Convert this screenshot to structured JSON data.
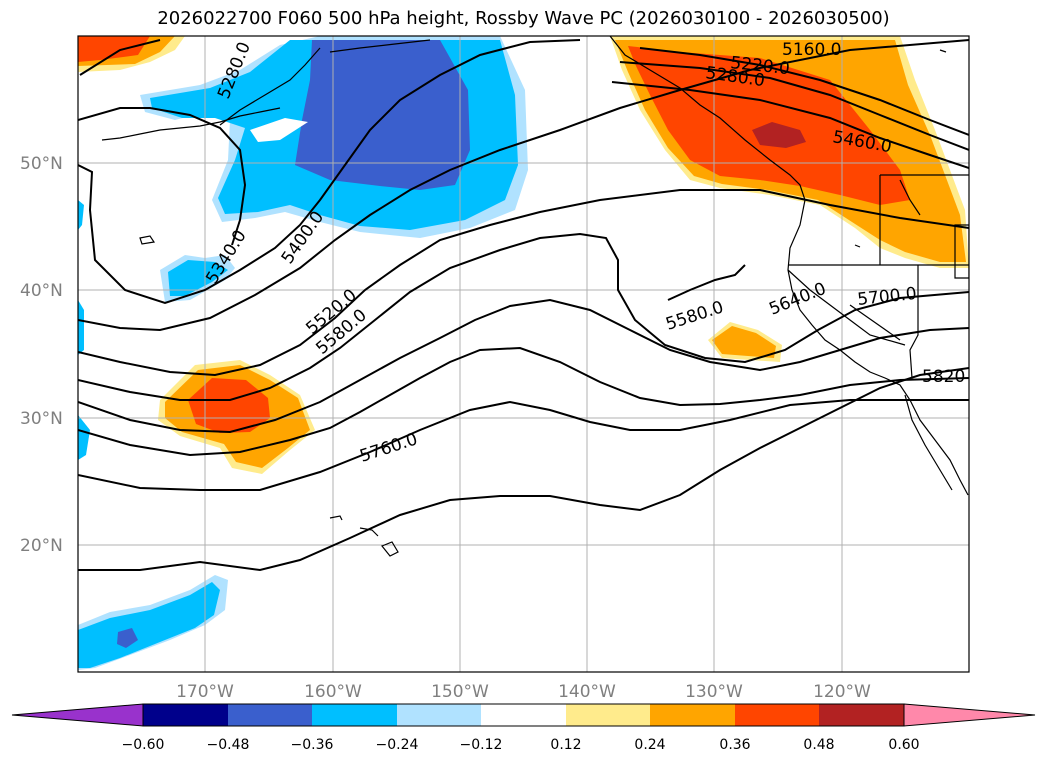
{
  "title": "2026022700 F060 500 hPa height, Rossby Wave PC (2026030100 - 2026030500)",
  "map": {
    "lon_range": [
      -180,
      -110
    ],
    "lat_range": [
      10,
      60
    ],
    "lon_ticks": [
      "170°W",
      "160°W",
      "150°W",
      "140°W",
      "130°W",
      "120°W"
    ],
    "lat_ticks": [
      "50°N",
      "40°N",
      "30°N",
      "20°N"
    ],
    "gridlines": true
  },
  "contour_labels": [
    "5160.0",
    "5220.0",
    "5280.0",
    "5280.0",
    "5460.0",
    "5340.0",
    "5400.0",
    "5520.0",
    "5580.0",
    "5580.0",
    "5640.0",
    "5700.0",
    "5760.0",
    "5820"
  ],
  "colorbar": {
    "tick_labels": [
      "−0.60",
      "−0.48",
      "−0.36",
      "−0.24",
      "−0.12",
      "0.12",
      "0.24",
      "0.36",
      "0.48",
      "0.60"
    ],
    "colors": [
      "#9932cc",
      "#00008b",
      "#3a5fcd",
      "#00bfff",
      "#b0e2ff",
      "#ffffff",
      "#ffeb8c",
      "#ffa500",
      "#ff4500",
      "#b22222",
      "#ff88aa"
    ],
    "extend": "both"
  }
}
